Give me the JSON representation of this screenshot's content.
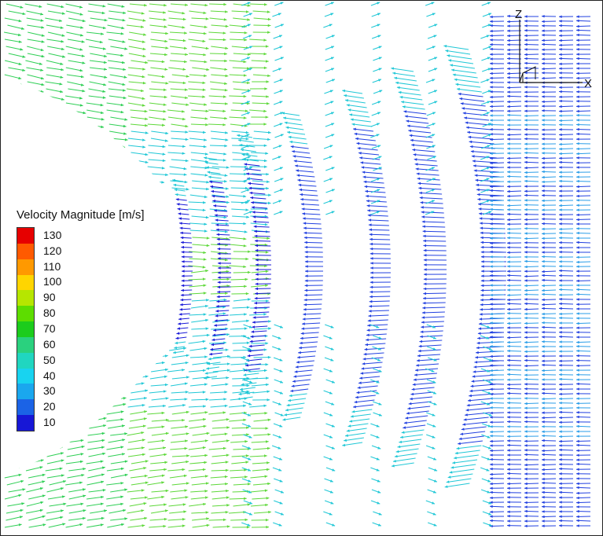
{
  "legend": {
    "title": "Velocity Magnitude [m/s]",
    "levels": [
      {
        "label": "130",
        "color": "#e60000"
      },
      {
        "label": "120",
        "color": "#ff5a00"
      },
      {
        "label": "110",
        "color": "#ff9900"
      },
      {
        "label": "100",
        "color": "#ffd500"
      },
      {
        "label": "90",
        "color": "#b6e600"
      },
      {
        "label": "80",
        "color": "#5ddd00"
      },
      {
        "label": "70",
        "color": "#1ccc1c"
      },
      {
        "label": "60",
        "color": "#2ad17e"
      },
      {
        "label": "50",
        "color": "#20d6c0"
      },
      {
        "label": "40",
        "color": "#18d3f0"
      },
      {
        "label": "30",
        "color": "#1aa7ee"
      },
      {
        "label": "20",
        "color": "#1b63e6"
      },
      {
        "label": "10",
        "color": "#1717d6"
      }
    ]
  },
  "axes": {
    "z_label": "Z",
    "x_label": "X"
  }
}
